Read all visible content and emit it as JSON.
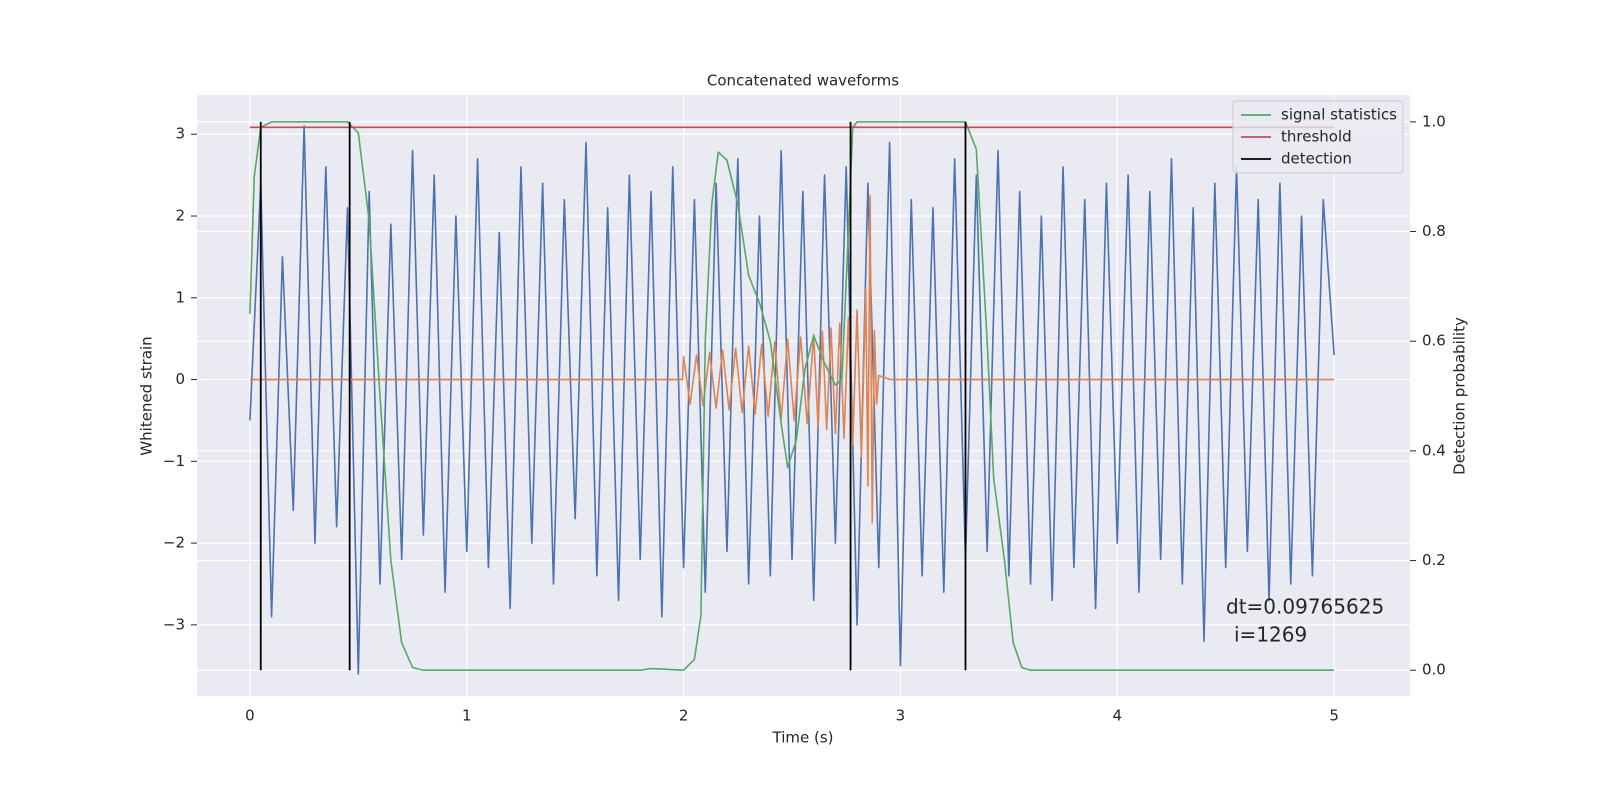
{
  "chart_data": {
    "type": "line",
    "title": "Concatenated waveforms",
    "xlabel": "Time (s)",
    "ylabel": "Whitened strain",
    "y2label": "Detection probability",
    "xlim": [
      -0.244,
      5.35
    ],
    "ylim": [
      -3.87,
      3.48
    ],
    "y2lim": [
      -0.047,
      1.049
    ],
    "xticks": [
      0,
      1,
      2,
      3,
      4,
      5
    ],
    "yticks": [
      {
        "value": -3,
        "label": "−3"
      },
      {
        "value": -2,
        "label": "−2"
      },
      {
        "value": -1,
        "label": "−1"
      },
      0,
      1,
      2,
      3
    ],
    "y2ticks": [
      {
        "value": 0,
        "label": "0.0"
      },
      {
        "value": 0.2,
        "label": "0.2"
      },
      {
        "value": 0.4,
        "label": "0.4"
      },
      {
        "value": 0.6,
        "label": "0.6"
      },
      {
        "value": 0.8,
        "label": "0.8"
      },
      {
        "value": 1,
        "label": "1.0"
      }
    ],
    "grid": true,
    "legend": "upper right",
    "series": [
      {
        "color": "#4c72b0",
        "x": [
          0,
          0.05,
          0.1,
          0.15,
          0.2,
          0.25,
          0.3,
          0.35,
          0.4,
          0.45,
          0.5,
          0.55,
          0.6,
          0.65,
          0.7,
          0.75,
          0.8,
          0.85,
          0.9,
          0.95,
          1,
          1.05,
          1.1,
          1.15,
          1.2,
          1.25,
          1.3,
          1.35,
          1.4,
          1.45,
          1.5,
          1.55,
          1.6,
          1.65,
          1.7,
          1.75,
          1.8,
          1.85,
          1.9,
          1.95,
          2,
          2.05,
          2.1,
          2.15,
          2.2,
          2.25,
          2.3,
          2.35,
          2.4,
          2.45,
          2.5,
          2.55,
          2.6,
          2.65,
          2.7,
          2.75,
          2.8,
          2.85,
          2.9,
          2.95,
          3,
          3.05,
          3.1,
          3.15,
          3.2,
          3.25,
          3.3,
          3.35,
          3.4,
          3.45,
          3.5,
          3.55,
          3.6,
          3.65,
          3.7,
          3.75,
          3.8,
          3.85,
          3.9,
          3.95,
          4,
          4.05,
          4.1,
          4.15,
          4.2,
          4.25,
          4.3,
          4.35,
          4.4,
          4.45,
          4.5,
          4.55,
          4.6,
          4.65,
          4.7,
          4.75,
          4.8,
          4.85,
          4.9,
          4.95,
          5
        ],
        "values": [
          -0.5,
          2.4,
          -2.9,
          1.5,
          -1.6,
          3.1,
          -2.0,
          2.6,
          -1.8,
          2.1,
          -3.6,
          2.3,
          -2.5,
          1.9,
          -2.2,
          2.8,
          -1.9,
          2.5,
          -2.6,
          2.0,
          -2.1,
          2.7,
          -2.3,
          1.8,
          -2.8,
          2.6,
          -2.0,
          2.4,
          -2.5,
          2.2,
          -1.7,
          2.9,
          -2.4,
          2.1,
          -2.7,
          2.5,
          -2.2,
          2.3,
          -2.9,
          2.6,
          -2.3,
          2.2,
          -2.6,
          2.4,
          -2.1,
          2.7,
          -2.5,
          2.0,
          -2.4,
          2.8,
          -2.2,
          2.3,
          -2.7,
          2.5,
          -2.0,
          2.6,
          -3.0,
          2.4,
          -2.3,
          2.9,
          -3.5,
          2.2,
          -2.4,
          2.1,
          -2.6,
          2.7,
          -2.2,
          2.5,
          -2.1,
          2.8,
          -2.4,
          2.3,
          -2.5,
          2.0,
          -2.7,
          2.6,
          -2.3,
          2.2,
          -2.8,
          2.4,
          -2.0,
          2.5,
          -2.6,
          2.3,
          -2.2,
          2.7,
          -2.5,
          2.1,
          -3.2,
          2.4,
          -2.3,
          2.6,
          -2.1,
          2.2,
          -2.7,
          2.4,
          -2.5,
          2.0,
          -2.4,
          2.2,
          0.3
        ]
      },
      {
        "color": "#dd8452",
        "x": [
          0,
          1.995,
          2.0,
          2.03,
          2.06,
          2.09,
          2.12,
          2.15,
          2.18,
          2.21,
          2.24,
          2.27,
          2.3,
          2.33,
          2.36,
          2.39,
          2.42,
          2.45,
          2.48,
          2.51,
          2.54,
          2.57,
          2.6,
          2.62,
          2.64,
          2.66,
          2.68,
          2.7,
          2.72,
          2.74,
          2.76,
          2.78,
          2.8,
          2.82,
          2.84,
          2.85,
          2.86,
          2.87,
          2.88,
          2.89,
          2.9,
          2.95,
          5.0
        ],
        "values": [
          0,
          0,
          0.28,
          -0.3,
          0.3,
          -0.32,
          0.33,
          -0.35,
          0.36,
          -0.37,
          0.38,
          -0.4,
          0.41,
          -0.42,
          0.43,
          -0.45,
          0.46,
          -0.48,
          0.49,
          -0.5,
          0.52,
          -0.54,
          0.55,
          -0.57,
          0.59,
          -0.61,
          0.63,
          -0.66,
          0.69,
          -0.72,
          0.76,
          -0.8,
          0.85,
          -0.95,
          1.1,
          -1.3,
          2.25,
          -1.75,
          0.6,
          -0.3,
          0.05,
          0,
          0
        ]
      },
      {
        "name": "signal statistics",
        "color": "#55a868",
        "axis": "y2",
        "x": [
          0,
          0.02,
          0.05,
          0.1,
          0.45,
          0.5,
          0.55,
          0.6,
          0.65,
          0.7,
          0.75,
          0.8,
          1.8,
          1.85,
          2.0,
          2.05,
          2.08,
          2.1,
          2.13,
          2.16,
          2.2,
          2.25,
          2.3,
          2.35,
          2.4,
          2.45,
          2.48,
          2.52,
          2.56,
          2.6,
          2.65,
          2.7,
          2.73,
          2.76,
          2.78,
          2.8,
          3.3,
          3.35,
          3.4,
          3.43,
          3.48,
          3.52,
          3.56,
          3.6,
          5.0
        ],
        "values": [
          0.65,
          0.9,
          0.99,
          1.0,
          1.0,
          0.98,
          0.82,
          0.5,
          0.2,
          0.05,
          0.005,
          0,
          0,
          0.003,
          0,
          0.02,
          0.1,
          0.6,
          0.85,
          0.945,
          0.93,
          0.85,
          0.72,
          0.67,
          0.6,
          0.45,
          0.37,
          0.42,
          0.55,
          0.61,
          0.56,
          0.52,
          0.53,
          0.8,
          0.99,
          1.0,
          1.0,
          0.95,
          0.6,
          0.35,
          0.2,
          0.05,
          0.005,
          0,
          0
        ]
      },
      {
        "name": "threshold",
        "color": "#c44e52",
        "axis": "y2",
        "x": [
          0,
          5
        ],
        "values": [
          0.99,
          0.99
        ]
      }
    ],
    "detections": {
      "name": "detection",
      "color": "#000000",
      "x": [
        0.05,
        0.46,
        2.77,
        3.3
      ]
    },
    "annotations": [
      "dt=0.09765625",
      "i=1269"
    ]
  }
}
